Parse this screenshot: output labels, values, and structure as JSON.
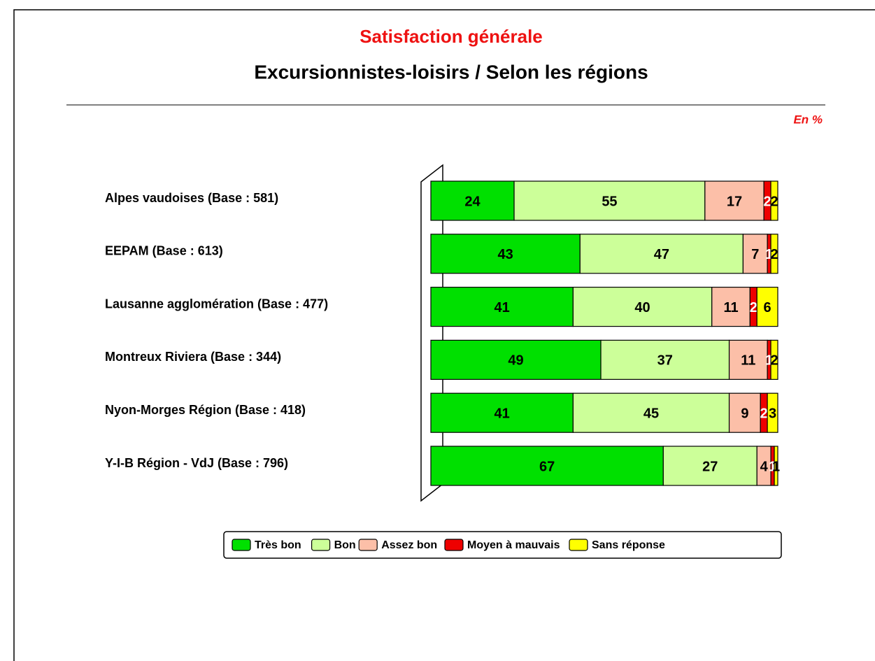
{
  "chart_data": {
    "type": "stacked_bar_horizontal",
    "title": "Satisfaction générale",
    "subtitle": "Excursionnistes-loisirs / Selon les régions",
    "unit_note": "En %",
    "categories": [
      "Alpes vaudoises (Base : 581)",
      "EEPAM (Base : 613)",
      "Lausanne agglomération (Base : 477)",
      "Montreux Riviera (Base : 344)",
      "Nyon-Morges Région (Base : 418)",
      "Y-I-B Région - VdJ (Base : 796)"
    ],
    "series": [
      {
        "name": "Très bon",
        "color": "#00e000",
        "label_color": "#000000",
        "values": [
          24,
          43,
          41,
          49,
          41,
          67
        ]
      },
      {
        "name": "Bon",
        "color": "#ccff99",
        "label_color": "#000000",
        "values": [
          55,
          47,
          40,
          37,
          45,
          27
        ]
      },
      {
        "name": "Assez bon",
        "color": "#fcbfa8",
        "label_color": "#000000",
        "values": [
          17,
          7,
          11,
          11,
          9,
          4
        ]
      },
      {
        "name": "Moyen à mauvais",
        "color": "#ee0000",
        "label_color": "#ffffff",
        "values": [
          2,
          1,
          2,
          1,
          2,
          1
        ]
      },
      {
        "name": "Sans réponse",
        "color": "#ffff00",
        "label_color": "#000000",
        "values": [
          2,
          2,
          6,
          2,
          3,
          1
        ]
      }
    ],
    "xlim": [
      0,
      100
    ],
    "legend": "bottom"
  }
}
